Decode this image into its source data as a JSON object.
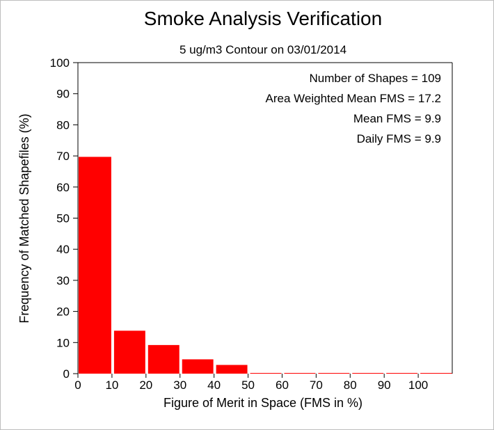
{
  "chart_data": {
    "type": "bar",
    "title": "Smoke Analysis Verification",
    "subtitle": "5 ug/m3 Contour on 03/01/2014",
    "xlabel": "Figure of Merit in Space (FMS in %)",
    "ylabel": "Frequency of Matched Shapefiles (%)",
    "xlim": [
      0,
      110
    ],
    "ylim": [
      0,
      100
    ],
    "x_ticks": [
      "0",
      "10",
      "20",
      "30",
      "40",
      "50",
      "60",
      "70",
      "80",
      "90",
      "100"
    ],
    "y_ticks": [
      "0",
      "10",
      "20",
      "30",
      "40",
      "50",
      "60",
      "70",
      "80",
      "90",
      "100"
    ],
    "bin_edges": [
      0,
      10,
      20,
      30,
      40,
      50,
      60,
      70,
      80,
      90,
      100,
      110
    ],
    "values": [
      69.7,
      13.8,
      9.2,
      4.6,
      2.8,
      0,
      0,
      0,
      0,
      0,
      0
    ],
    "bar_color": "#ff0000",
    "grid": false,
    "annotations": [
      "Number of Shapes = 109",
      "Area Weighted Mean FMS = 17.2",
      "Mean FMS = 9.9",
      "Daily FMS = 9.9"
    ],
    "annotation_placement": "top-right"
  }
}
